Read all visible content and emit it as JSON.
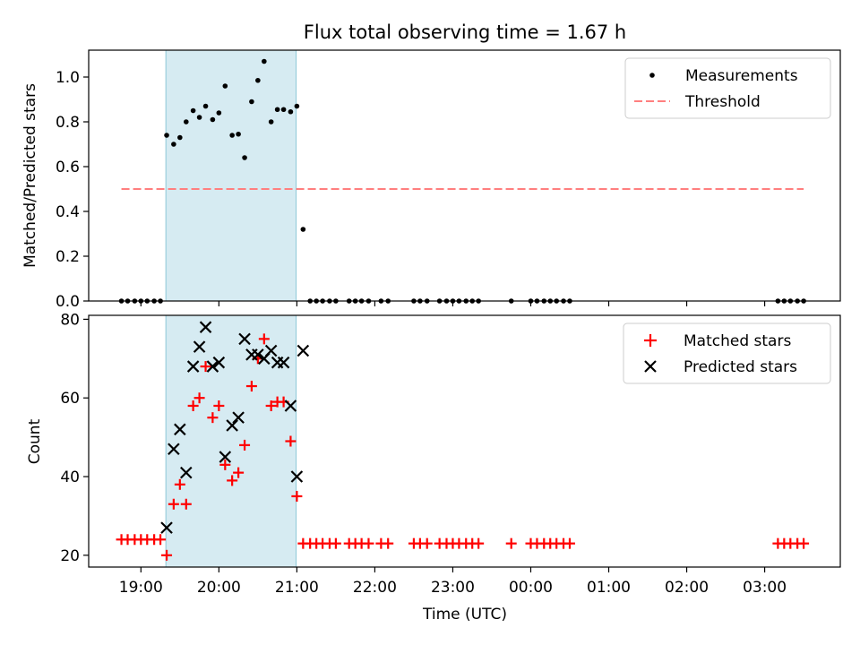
{
  "title": "Flux total observing time = 1.67 h",
  "colors": {
    "measurement": "#000000",
    "threshold": "#ff7f7f",
    "matched": "#ff0000",
    "predicted": "#000000",
    "span": "#add8e6"
  },
  "chart_data": [
    {
      "type": "scatter",
      "ylabel": "Matched/Predicted stars",
      "ylim": [
        0,
        1.12
      ],
      "yticks": [
        0.0,
        0.2,
        0.4,
        0.6,
        0.8,
        1.0
      ],
      "ytick_labels": [
        "0.0",
        "0.2",
        "0.4",
        "0.6",
        "0.8",
        "1.0"
      ],
      "xlim": [
        18.33,
        27.97
      ],
      "shaded_span": [
        19.32,
        20.99
      ],
      "legend": {
        "position": "top-right",
        "entries": [
          "Measurements",
          "Threshold"
        ]
      },
      "threshold": {
        "name": "Threshold",
        "y": 0.5,
        "x_range": [
          18.75,
          27.5
        ]
      },
      "series": [
        {
          "name": "Measurements",
          "marker": "dot",
          "x": [
            18.75,
            18.83,
            18.92,
            19.0,
            19.08,
            19.17,
            19.25,
            19.33,
            19.42,
            19.5,
            19.58,
            19.67,
            19.75,
            19.83,
            19.92,
            20.0,
            20.08,
            20.17,
            20.25,
            20.33,
            20.42,
            20.5,
            20.58,
            20.67,
            20.75,
            20.83,
            20.92,
            21.0,
            21.08,
            21.17,
            21.25,
            21.33,
            21.42,
            21.5,
            21.67,
            21.75,
            21.83,
            21.92,
            22.08,
            22.17,
            22.5,
            22.58,
            22.67,
            22.83,
            22.92,
            23.0,
            23.08,
            23.17,
            23.25,
            23.33,
            23.75,
            24.0,
            24.08,
            24.17,
            24.25,
            24.33,
            24.42,
            24.5,
            27.17,
            27.25,
            27.33,
            27.42,
            27.5
          ],
          "y": [
            0,
            0,
            0,
            0,
            0,
            0,
            0,
            0.74,
            0.7,
            0.73,
            0.8,
            0.85,
            0.82,
            0.87,
            0.81,
            0.84,
            0.96,
            0.74,
            0.745,
            0.64,
            0.89,
            0.985,
            1.07,
            0.8,
            0.855,
            0.855,
            0.845,
            0.87,
            0.32,
            0,
            0,
            0,
            0,
            0,
            0,
            0,
            0,
            0,
            0,
            0,
            0,
            0,
            0,
            0,
            0,
            0,
            0,
            0,
            0,
            0,
            0,
            0,
            0,
            0,
            0,
            0,
            0,
            0,
            0,
            0,
            0,
            0,
            0
          ]
        }
      ]
    },
    {
      "type": "scatter",
      "xlabel": "Time (UTC)",
      "ylabel": "Count",
      "ylim": [
        17,
        81
      ],
      "yticks": [
        20,
        40,
        60,
        80
      ],
      "ytick_labels": [
        "20",
        "40",
        "60",
        "80"
      ],
      "xlim": [
        18.33,
        27.97
      ],
      "xticks": [
        19,
        20,
        21,
        22,
        23,
        24,
        25,
        26,
        27
      ],
      "xtick_labels": [
        "19:00",
        "20:00",
        "21:00",
        "22:00",
        "23:00",
        "00:00",
        "01:00",
        "02:00",
        "03:00"
      ],
      "shaded_span": [
        19.32,
        20.99
      ],
      "legend": {
        "position": "top-right",
        "entries": [
          "Matched stars",
          "Predicted stars"
        ]
      },
      "series": [
        {
          "name": "Matched stars",
          "marker": "plus",
          "x": [
            18.75,
            18.83,
            18.92,
            19.0,
            19.08,
            19.17,
            19.25,
            19.33,
            19.42,
            19.5,
            19.58,
            19.67,
            19.75,
            19.83,
            19.92,
            20.0,
            20.08,
            20.17,
            20.25,
            20.33,
            20.42,
            20.5,
            20.58,
            20.67,
            20.75,
            20.83,
            20.92,
            21.0,
            21.08,
            21.17,
            21.25,
            21.33,
            21.42,
            21.5,
            21.67,
            21.75,
            21.83,
            21.92,
            22.08,
            22.17,
            22.5,
            22.58,
            22.67,
            22.83,
            22.92,
            23.0,
            23.08,
            23.17,
            23.25,
            23.33,
            23.75,
            24.0,
            24.08,
            24.17,
            24.25,
            24.33,
            24.42,
            24.5,
            27.17,
            27.25,
            27.33,
            27.42,
            27.5
          ],
          "y": [
            24,
            24,
            24,
            24,
            24,
            24,
            24,
            20,
            33,
            38,
            33,
            58,
            60,
            68,
            55,
            58,
            43,
            39,
            41,
            48,
            63,
            70,
            75,
            58,
            59,
            59,
            49,
            35,
            23,
            23,
            23,
            23,
            23,
            23,
            23,
            23,
            23,
            23,
            23,
            23,
            23,
            23,
            23,
            23,
            23,
            23,
            23,
            23,
            23,
            23,
            23,
            23,
            23,
            23,
            23,
            23,
            23,
            23,
            23,
            23,
            23,
            23,
            23
          ]
        },
        {
          "name": "Predicted stars",
          "marker": "cross",
          "x": [
            19.33,
            19.42,
            19.5,
            19.58,
            19.67,
            19.75,
            19.83,
            19.92,
            20.0,
            20.08,
            20.17,
            20.25,
            20.33,
            20.42,
            20.5,
            20.58,
            20.67,
            20.75,
            20.83,
            20.92,
            21.0,
            21.08
          ],
          "y": [
            27,
            47,
            52,
            41,
            68,
            73,
            78,
            68,
            69,
            45,
            53,
            55,
            75,
            71,
            71,
            70,
            72,
            69,
            69,
            58,
            40,
            72
          ]
        }
      ]
    }
  ]
}
